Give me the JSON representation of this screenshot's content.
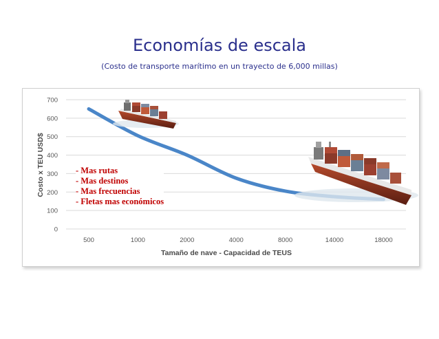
{
  "title": "Economías de escala",
  "subtitle": "(Costo de transporte marítimo en un trayecto de 6,000 millas)",
  "bullets": [
    "- Mas rutas",
    "- Mas destinos",
    "- Mas frecuencias",
    "- Fletas mas económicos"
  ],
  "colors": {
    "curve": "#4a86c8",
    "bullets": "#c00000",
    "title": "#2a2f8c"
  },
  "icons": [
    "small-container-ship-icon",
    "large-container-ship-icon"
  ],
  "chart_data": {
    "type": "line",
    "title": "",
    "xlabel": "Tamaño de nave - Capacidad de TEUS",
    "ylabel": "Costo x TEU USD$",
    "categories": [
      "500",
      "1000",
      "2000",
      "4000",
      "8000",
      "14000",
      "18000"
    ],
    "series": [
      {
        "values": [
          650,
          505,
          400,
          275,
          205,
          175,
          160
        ]
      }
    ],
    "ylim": [
      0,
      700
    ],
    "yticks": [
      0,
      100,
      200,
      300,
      400,
      500,
      600,
      700
    ],
    "grid": true
  }
}
